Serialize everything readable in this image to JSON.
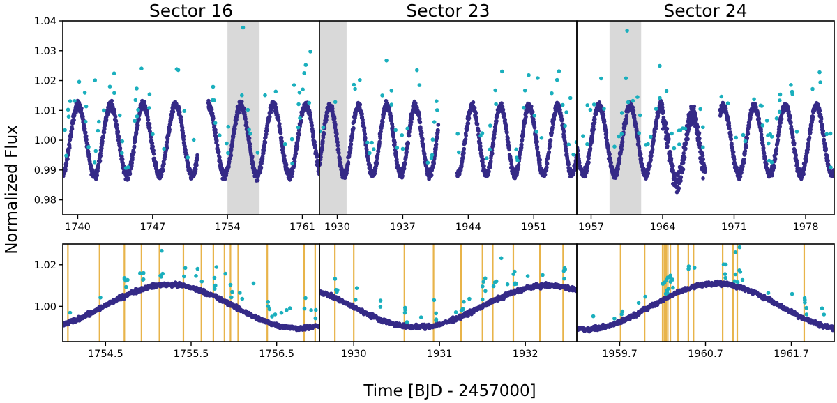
{
  "chart_data": {
    "type": "scatter",
    "ylabel": "Normalized Flux",
    "xlabel": "Time [BJD - 2457000]",
    "colors": {
      "quiescent": "#352a87",
      "flare": "#1aafbd",
      "gap": "#d9d9d9",
      "flare_marker": "#e8b44a"
    },
    "top": {
      "ylim": [
        0.975,
        1.04
      ],
      "yticks": [
        0.98,
        0.99,
        1.0,
        1.01,
        1.02,
        1.03,
        1.04
      ],
      "ytick_labels": [
        "0.98",
        "0.99",
        "1.00",
        "1.01",
        "1.02",
        "1.03",
        "1.04"
      ],
      "panels": [
        {
          "title": "Sector 16",
          "xlim": [
            1738.6,
            1762.6
          ],
          "xticks": [
            1740,
            1747,
            1754,
            1761
          ],
          "xtick_labels": [
            "1740",
            "1747",
            "1754",
            "1761"
          ],
          "gaps": [
            [
              1751.2,
              1752.2
            ]
          ],
          "highlight": [
            1754.0,
            1757.0
          ],
          "period": 3.04,
          "phase": 0.4,
          "amp": 0.0118
        },
        {
          "title": "Sector 23",
          "xlim": [
            1928.1,
            1955.6
          ],
          "xticks": [
            1930,
            1937,
            1944,
            1951
          ],
          "xtick_labels": [
            "1930",
            "1937",
            "1944",
            "1951"
          ],
          "gaps": [
            [
              1940.8,
              1942.8
            ]
          ],
          "highlight": [
            1928.1,
            1931.0
          ],
          "period": 3.04,
          "phase": 1.1,
          "amp": 0.0115
        },
        {
          "title": "Sector 24",
          "xlim": [
            1955.6,
            1980.8
          ],
          "xticks": [
            1957,
            1964,
            1971,
            1978
          ],
          "xtick_labels": [
            "1957",
            "1964",
            "1971",
            "1978"
          ],
          "gaps": [
            [
              1968.2,
              1969.6
            ]
          ],
          "highlight": [
            1958.8,
            1961.9
          ],
          "period": 3.04,
          "phase": 2.3,
          "amp": 0.0115
        }
      ]
    },
    "bottom": {
      "ylim": [
        0.983,
        1.03
      ],
      "yticks": [
        1.0,
        1.02
      ],
      "ytick_labels": [
        "1.00",
        "1.02"
      ],
      "panels": [
        {
          "xlim": [
            1754.0,
            1757.0
          ],
          "xticks": [
            1754.5,
            1755.5,
            1756.5
          ],
          "xtick_labels": [
            "1754.5",
            "1755.5",
            "1756.5"
          ],
          "period": 3.04,
          "phase": 0.4,
          "amp": 0.0105,
          "flares": [
            1754.06,
            1754.43,
            1754.72,
            1754.92,
            1755.13,
            1755.41,
            1755.62,
            1755.76,
            1755.89,
            1755.96,
            1756.05,
            1756.39,
            1756.82,
            1756.95
          ]
        },
        {
          "xlim": [
            1929.6,
            1932.6
          ],
          "xticks": [
            1930.0,
            1931.0,
            1932.0
          ],
          "xtick_labels": [
            "1930",
            "1931",
            "1932"
          ],
          "period": 3.04,
          "phase": 1.1,
          "amp": 0.01,
          "flares": [
            1929.78,
            1930.0,
            1930.59,
            1930.93,
            1931.25,
            1931.5,
            1931.62,
            1931.86,
            1932.17,
            1932.44
          ]
        },
        {
          "xlim": [
            1959.2,
            1962.2
          ],
          "xticks": [
            1959.7,
            1960.7,
            1961.7
          ],
          "xtick_labels": [
            "1959.7",
            "1960.7",
            "1961.7"
          ],
          "period": 3.04,
          "phase": 2.3,
          "amp": 0.011,
          "flares": [
            1959.71,
            1959.99,
            1960.2,
            1960.22,
            1960.24,
            1960.26,
            1960.29,
            1960.38,
            1960.5,
            1960.56,
            1960.9,
            1961.02,
            1961.07,
            1961.85
          ]
        }
      ]
    },
    "layout": {
      "legend": "none",
      "grid": false
    }
  }
}
